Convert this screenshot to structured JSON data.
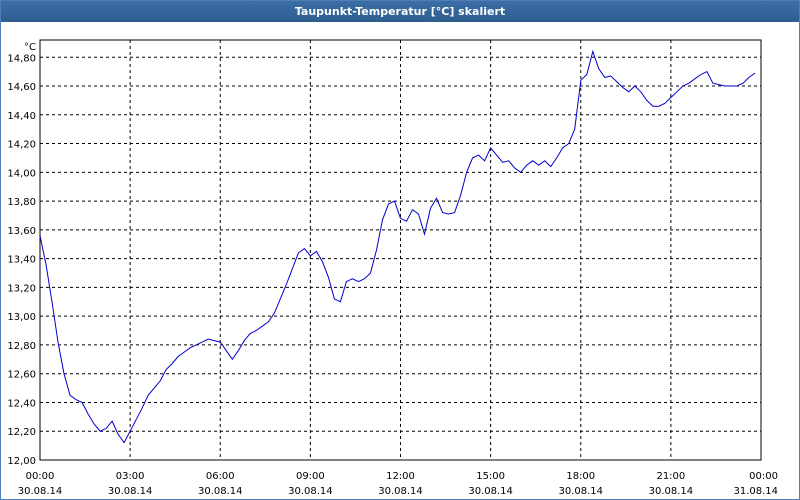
{
  "window": {
    "title": "Taupunkt-Temperatur [°C] skaliert"
  },
  "chart_data": {
    "type": "line",
    "title": "Taupunkt-Temperatur [°C] skaliert",
    "ylabel": "°C",
    "xlabel": "",
    "ylim": [
      12.0,
      14.92
    ],
    "xlim": [
      0,
      24
    ],
    "grid": true,
    "colors": {
      "line": "#0000cc",
      "grid": "#000000",
      "title_bar": "#3a6ea5"
    },
    "y_ticks": [
      "12,00",
      "12,20",
      "12,40",
      "12,60",
      "12,80",
      "13,00",
      "13,20",
      "13,40",
      "13,60",
      "13,80",
      "14,00",
      "14,20",
      "14,40",
      "14,60",
      "14,80"
    ],
    "x_ticks": [
      {
        "time": "00:00",
        "date": "30.08.14"
      },
      {
        "time": "03:00",
        "date": "30.08.14"
      },
      {
        "time": "06:00",
        "date": "30.08.14"
      },
      {
        "time": "09:00",
        "date": "30.08.14"
      },
      {
        "time": "12:00",
        "date": "30.08.14"
      },
      {
        "time": "15:00",
        "date": "30.08.14"
      },
      {
        "time": "18:00",
        "date": "30.08.14"
      },
      {
        "time": "21:00",
        "date": "30.08.14"
      },
      {
        "time": "00:00",
        "date": "31.08.14"
      }
    ],
    "series": [
      {
        "x": [
          0.0,
          0.2,
          0.4,
          0.6,
          0.8,
          1.0,
          1.2,
          1.4,
          1.6,
          1.8,
          2.0,
          2.2,
          2.4,
          2.6,
          2.8,
          3.0,
          3.2,
          3.4,
          3.6,
          3.8,
          4.0,
          4.2,
          4.4,
          4.6,
          4.8,
          5.0,
          5.2,
          5.4,
          5.6,
          5.8,
          6.0,
          6.2,
          6.4,
          6.6,
          6.8,
          7.0,
          7.2,
          7.4,
          7.6,
          7.8,
          8.0,
          8.2,
          8.4,
          8.6,
          8.8,
          9.0,
          9.2,
          9.4,
          9.6,
          9.8,
          10.0,
          10.2,
          10.4,
          10.6,
          10.8,
          11.0,
          11.2,
          11.4,
          11.6,
          11.8,
          12.0,
          12.2,
          12.4,
          12.6,
          12.8,
          13.0,
          13.2,
          13.4,
          13.6,
          13.8,
          14.0,
          14.2,
          14.4,
          14.6,
          14.8,
          15.0,
          15.2,
          15.4,
          15.6,
          15.8,
          16.0,
          16.2,
          16.4,
          16.6,
          16.8,
          17.0,
          17.2,
          17.4,
          17.6,
          17.8,
          18.0,
          18.2,
          18.4,
          18.6,
          18.8,
          19.0,
          19.2,
          19.4,
          19.6,
          19.8,
          20.0,
          20.2,
          20.4,
          20.6,
          20.8,
          21.0,
          21.2,
          21.4,
          21.6,
          21.8,
          22.0,
          22.2,
          22.4,
          22.6,
          22.8,
          23.0,
          23.2,
          23.4,
          23.6,
          23.8
        ],
        "y": [
          13.56,
          13.36,
          13.1,
          12.82,
          12.6,
          12.45,
          12.42,
          12.4,
          12.32,
          12.25,
          12.2,
          12.22,
          12.27,
          12.18,
          12.12,
          12.2,
          12.28,
          12.36,
          12.45,
          12.5,
          12.55,
          12.63,
          12.67,
          12.72,
          12.75,
          12.78,
          12.8,
          12.82,
          12.84,
          12.83,
          12.82,
          12.76,
          12.7,
          12.76,
          12.83,
          12.88,
          12.9,
          12.93,
          12.96,
          13.02,
          13.12,
          13.22,
          13.33,
          13.44,
          13.47,
          13.42,
          13.45,
          13.38,
          13.27,
          13.12,
          13.1,
          13.24,
          13.26,
          13.24,
          13.26,
          13.3,
          13.46,
          13.67,
          13.78,
          13.8,
          13.68,
          13.66,
          13.74,
          13.71,
          13.57,
          13.75,
          13.82,
          13.72,
          13.71,
          13.72,
          13.84,
          14.0,
          14.1,
          14.12,
          14.08,
          14.17,
          14.12,
          14.07,
          14.08,
          14.03,
          14.0,
          14.05,
          14.08,
          14.05,
          14.08,
          14.04,
          14.1,
          14.17,
          14.2,
          14.3,
          14.64,
          14.68,
          14.84,
          14.72,
          14.66,
          14.67,
          14.63,
          14.59,
          14.56,
          14.6,
          14.56,
          14.5,
          14.46,
          14.46,
          14.48,
          14.52,
          14.56,
          14.6,
          14.62,
          14.65,
          14.68,
          14.7,
          14.62,
          14.61,
          14.6,
          14.6,
          14.6,
          14.62,
          14.66,
          14.69
        ]
      }
    ]
  }
}
